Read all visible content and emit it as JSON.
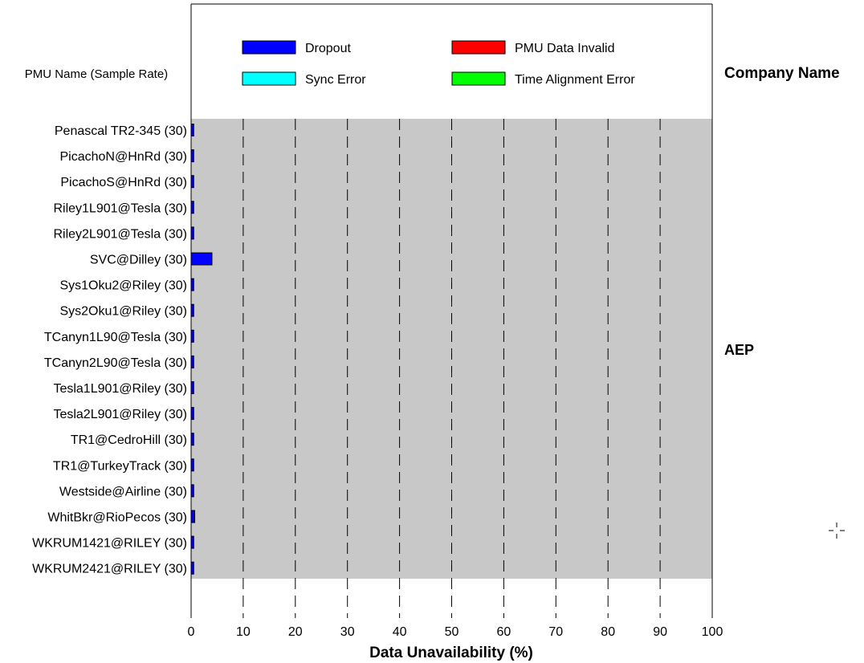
{
  "chart_data": {
    "type": "bar",
    "orientation": "horizontal",
    "xlabel": "Data Unavailability (%)",
    "xlim": [
      0,
      100
    ],
    "xticks": [
      "0",
      "10",
      "20",
      "30",
      "40",
      "50",
      "60",
      "70",
      "80",
      "90",
      "100"
    ],
    "row_header": "PMU Name (Sample Rate)",
    "group_header": "Company Name",
    "groups": [
      {
        "name": "AEP",
        "first_row": 0,
        "last_row": 17
      }
    ],
    "legend_position": "top",
    "legend": [
      {
        "name": "Dropout",
        "color": "#0000ff"
      },
      {
        "name": "PMU Data Invalid",
        "color": "#ff0000"
      },
      {
        "name": "Sync Error",
        "color": "#00ffff"
      },
      {
        "name": "Time Alignment Error",
        "color": "#00ff00"
      }
    ],
    "categories": [
      "Penascal TR2-345 (30)",
      "PicachoN@HnRd (30)",
      "PicachoS@HnRd (30)",
      "Riley1L901@Tesla (30)",
      "Riley2L901@Tesla (30)",
      "SVC@Dilley (30)",
      "Sys1Oku2@Riley (30)",
      "Sys2Oku1@Riley (30)",
      "TCanyn1L90@Tesla (30)",
      "TCanyn2L90@Tesla (30)",
      "Tesla1L901@Riley (30)",
      "Tesla2L901@Riley (30)",
      "TR1@CedroHill (30)",
      "TR1@TurkeyTrack (30)",
      "Westside@Airline (30)",
      "WhitBkr@RioPecos (30)",
      "WKRUM1421@RILEY (30)",
      "WKRUM2421@RILEY (30)"
    ],
    "series": [
      {
        "name": "Dropout",
        "color": "#0000ff",
        "values": [
          0.5,
          0.5,
          0.5,
          0.5,
          0.5,
          4.0,
          0.5,
          0.5,
          0.5,
          0.5,
          0.5,
          0.5,
          0.5,
          0.5,
          0.5,
          0.7,
          0.5,
          0.5
        ]
      },
      {
        "name": "PMU Data Invalid",
        "color": "#ff0000",
        "values": [
          0,
          0,
          0,
          0,
          0,
          0,
          0,
          0,
          0,
          0,
          0,
          0,
          0,
          0,
          0,
          0,
          0,
          0
        ]
      },
      {
        "name": "Sync Error",
        "color": "#00ffff",
        "values": [
          0,
          0,
          0,
          0,
          0,
          0,
          0,
          0,
          0,
          0,
          0,
          0,
          0,
          0,
          0,
          0,
          0,
          0
        ]
      },
      {
        "name": "Time Alignment Error",
        "color": "#00ff00",
        "values": [
          0,
          0,
          0,
          0,
          0,
          0,
          0,
          0,
          0,
          0,
          0,
          0,
          0,
          0,
          0,
          0,
          0,
          0
        ]
      }
    ],
    "grid": true,
    "plot_background": "#c8c8c8"
  }
}
